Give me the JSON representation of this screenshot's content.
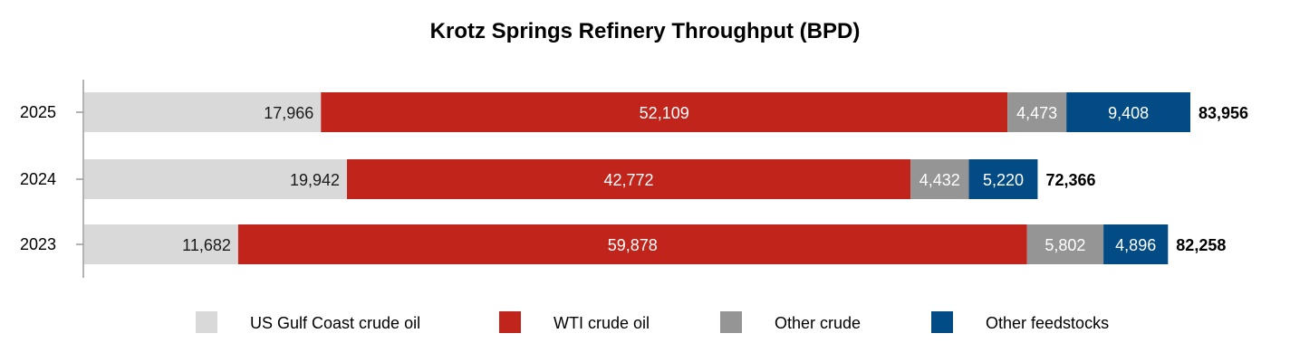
{
  "chart_data": {
    "type": "bar",
    "orientation": "horizontal",
    "stacked": true,
    "title": "Krotz Springs Refinery Throughput (BPD)",
    "categories": [
      "2025",
      "2024",
      "2023"
    ],
    "series": [
      {
        "name": "US Gulf Coast crude oil",
        "color": "#d9d9d9",
        "label_color": "#1a1a1a",
        "values": [
          17966,
          19942,
          11682
        ],
        "labels": [
          "17,966",
          "19,942",
          "11,682"
        ]
      },
      {
        "name": "WTI crude oil",
        "color": "#c0241b",
        "label_color": "#ffffff",
        "values": [
          52109,
          42772,
          59878
        ],
        "labels": [
          "52,109",
          "42,772",
          "59,878"
        ]
      },
      {
        "name": "Other crude",
        "color": "#959595",
        "label_color": "#ffffff",
        "values": [
          4473,
          4432,
          5802
        ],
        "labels": [
          "4,473",
          "4,432",
          "5,802"
        ]
      },
      {
        "name": "Other feedstocks",
        "color": "#024b84",
        "label_color": "#ffffff",
        "values": [
          9408,
          5220,
          4896
        ],
        "labels": [
          "9,408",
          "5,220",
          "4,896"
        ]
      }
    ],
    "totals": [
      83956,
      72366,
      82258
    ],
    "total_labels": [
      "83,956",
      "72,366",
      "82,258"
    ],
    "xlim": [
      0,
      83956
    ],
    "grid": false,
    "legend": "bottom"
  }
}
